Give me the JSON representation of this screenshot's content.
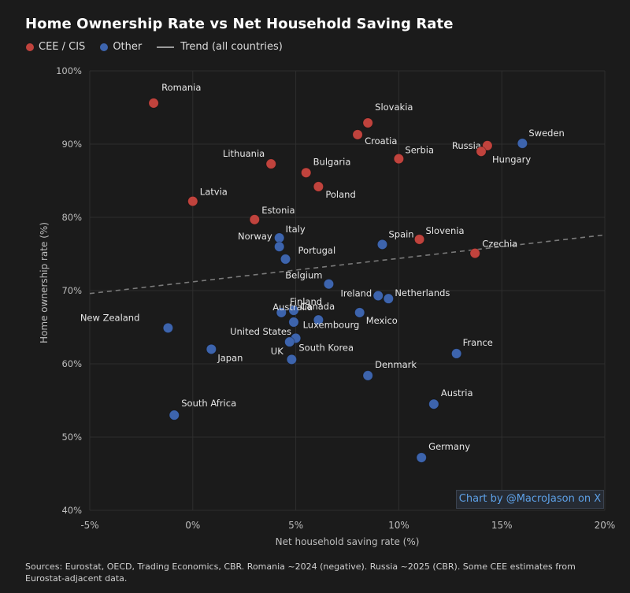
{
  "title": "Home Ownership Rate vs Net Household Saving Rate",
  "legend": {
    "cee": "CEE / CIS",
    "other": "Other",
    "trend": "Trend (all countries)"
  },
  "credit": "Chart by @MacroJason on X",
  "sources": "Sources: Eurostat, OECD, Trading Economics, CBR. Romania ~2024 (negative). Russia ~2025 (CBR). Some CEE estimates from Eurostat-adjacent data.",
  "colors": {
    "background": "#1b1b1b",
    "cee": "#c0433d",
    "other": "#3d64ad",
    "trend": "#7a7a7a",
    "grid": "#2e2e2e"
  },
  "chart_data": {
    "type": "scatter",
    "title": "Home Ownership Rate vs Net Household Saving Rate",
    "xlabel": "Net household saving rate (%)",
    "ylabel": "Home ownership rate (%)",
    "xlim": [
      -5,
      20
    ],
    "ylim": [
      40,
      100
    ],
    "xticks": [
      -5,
      0,
      5,
      10,
      15,
      20
    ],
    "xtick_labels": [
      "-5%",
      "0%",
      "5%",
      "10%",
      "15%",
      "20%"
    ],
    "yticks": [
      40,
      50,
      60,
      70,
      80,
      90,
      100
    ],
    "ytick_labels": [
      "40%",
      "50%",
      "60%",
      "70%",
      "80%",
      "90%",
      "100%"
    ],
    "grid": true,
    "legend_position": "top-left",
    "trend": {
      "x": [
        -5,
        20
      ],
      "y": [
        69.6,
        77.6
      ]
    },
    "series": [
      {
        "name": "CEE / CIS",
        "points": [
          {
            "label": "Romania",
            "x": -1.9,
            "y": 95.6
          },
          {
            "label": "Slovakia",
            "x": 8.5,
            "y": 92.9
          },
          {
            "label": "Croatia",
            "x": 8.0,
            "y": 91.3
          },
          {
            "label": "Russia",
            "x": 14.3,
            "y": 89.8
          },
          {
            "label": "Hungary",
            "x": 14.0,
            "y": 89.0
          },
          {
            "label": "Serbia",
            "x": 10.0,
            "y": 88.0
          },
          {
            "label": "Lithuania",
            "x": 3.8,
            "y": 87.3
          },
          {
            "label": "Bulgaria",
            "x": 5.5,
            "y": 86.1
          },
          {
            "label": "Poland",
            "x": 6.1,
            "y": 84.2
          },
          {
            "label": "Latvia",
            "x": 0.0,
            "y": 82.2
          },
          {
            "label": "Estonia",
            "x": 3.0,
            "y": 79.7
          },
          {
            "label": "Slovenia",
            "x": 11.0,
            "y": 77.0
          },
          {
            "label": "Czechia",
            "x": 13.7,
            "y": 75.1
          }
        ]
      },
      {
        "name": "Other",
        "points": [
          {
            "label": "Sweden",
            "x": 16.0,
            "y": 90.1
          },
          {
            "label": "Italy",
            "x": 4.2,
            "y": 77.2
          },
          {
            "label": "Norway",
            "x": 4.2,
            "y": 76.0
          },
          {
            "label": "Spain",
            "x": 9.2,
            "y": 76.3
          },
          {
            "label": "Portugal",
            "x": 4.5,
            "y": 74.3
          },
          {
            "label": "Belgium",
            "x": 6.6,
            "y": 70.9
          },
          {
            "label": "Ireland",
            "x": 9.0,
            "y": 69.3
          },
          {
            "label": "Netherlands",
            "x": 9.5,
            "y": 68.9
          },
          {
            "label": "Finland",
            "x": 4.9,
            "y": 67.3
          },
          {
            "label": "Australia",
            "x": 4.3,
            "y": 67.0
          },
          {
            "label": "Canada",
            "x": 6.1,
            "y": 66.0
          },
          {
            "label": "Mexico",
            "x": 8.1,
            "y": 67.0
          },
          {
            "label": "New Zealand",
            "x": -1.2,
            "y": 64.9
          },
          {
            "label": "United States",
            "x": 4.9,
            "y": 65.7
          },
          {
            "label": "Luxembourg",
            "x": 5.0,
            "y": 63.5
          },
          {
            "label": "UK",
            "x": 4.7,
            "y": 63.0
          },
          {
            "label": "Japan",
            "x": 0.9,
            "y": 62.0
          },
          {
            "label": "South Korea",
            "x": 4.8,
            "y": 60.6
          },
          {
            "label": "France",
            "x": 12.8,
            "y": 61.4
          },
          {
            "label": "Denmark",
            "x": 8.5,
            "y": 58.4
          },
          {
            "label": "Austria",
            "x": 11.7,
            "y": 54.5
          },
          {
            "label": "South Africa",
            "x": -0.9,
            "y": 53.0
          },
          {
            "label": "Germany",
            "x": 11.1,
            "y": 47.2
          }
        ]
      }
    ]
  }
}
